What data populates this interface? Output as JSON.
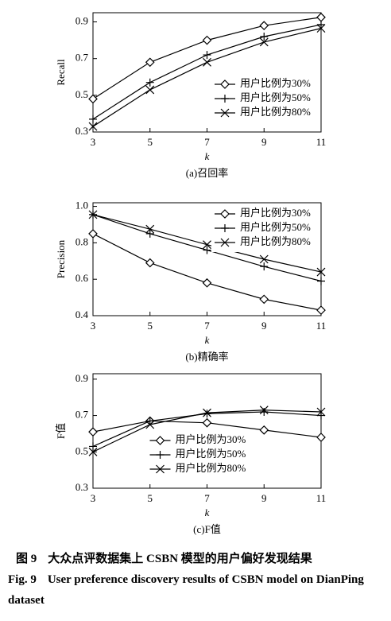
{
  "chart_data": [
    {
      "type": "line",
      "ylabel": "Recall",
      "xlabel": "k",
      "caption": "(a)召回率",
      "x": [
        3,
        5,
        7,
        9,
        11
      ],
      "xlim": [
        3,
        11
      ],
      "xticks": [
        3,
        5,
        7,
        9,
        11
      ],
      "ylim": [
        0.3,
        0.95
      ],
      "yticks": [
        0.3,
        0.5,
        0.7,
        0.9
      ],
      "legend": "lower right",
      "series": [
        {
          "name": "用户比例为30%",
          "color": "#000000",
          "marker": "diamond",
          "values": [
            0.48,
            0.68,
            0.8,
            0.88,
            0.925
          ]
        },
        {
          "name": "用户比例为50%",
          "color": "#000000",
          "marker": "plus",
          "values": [
            0.37,
            0.57,
            0.72,
            0.82,
            0.885
          ]
        },
        {
          "name": "用户比例为80%",
          "color": "#000000",
          "marker": "x",
          "values": [
            0.33,
            0.53,
            0.68,
            0.79,
            0.865
          ]
        }
      ]
    },
    {
      "type": "line",
      "ylabel": "Precision",
      "xlabel": "k",
      "caption": "(b)精确率",
      "x": [
        3,
        5,
        7,
        9,
        11
      ],
      "xlim": [
        3,
        11
      ],
      "xticks": [
        3,
        5,
        7,
        9,
        11
      ],
      "ylim": [
        0.4,
        1.02
      ],
      "yticks": [
        0.4,
        0.6,
        0.8,
        {
          "value": 1,
          "label": "1.0"
        }
      ],
      "legend": "upper right",
      "series": [
        {
          "name": "用户比例为30%",
          "color": "#000000",
          "marker": "diamond",
          "values": [
            0.85,
            0.69,
            0.58,
            0.49,
            0.43
          ]
        },
        {
          "name": "用户比例为50%",
          "color": "#000000",
          "marker": "plus",
          "values": [
            0.955,
            0.85,
            0.76,
            0.67,
            0.59
          ]
        },
        {
          "name": "用户比例为80%",
          "color": "#000000",
          "marker": "x",
          "values": [
            0.955,
            0.875,
            0.79,
            0.71,
            0.64
          ]
        }
      ]
    },
    {
      "type": "line",
      "ylabel": "F值",
      "xlabel": "k",
      "caption": "(c)F值",
      "x": [
        3,
        5,
        7,
        9,
        11
      ],
      "xlim": [
        3,
        11
      ],
      "xticks": [
        3,
        5,
        7,
        9,
        11
      ],
      "ylim": [
        0.3,
        0.93
      ],
      "yticks": [
        0.3,
        0.5,
        0.7,
        0.9
      ],
      "legend": "lower center",
      "series": [
        {
          "name": "用户比例为30%",
          "color": "#000000",
          "marker": "diamond",
          "values": [
            0.61,
            0.67,
            0.66,
            0.62,
            0.58
          ]
        },
        {
          "name": "用户比例为50%",
          "color": "#000000",
          "marker": "plus",
          "values": [
            0.53,
            0.67,
            0.71,
            0.72,
            0.7
          ]
        },
        {
          "name": "用户比例为80%",
          "color": "#000000",
          "marker": "x",
          "values": [
            0.5,
            0.65,
            0.715,
            0.73,
            0.72
          ]
        }
      ]
    }
  ],
  "figure": {
    "label_cn": "图 9",
    "title_cn": "大众点评数据集上 CSBN 模型的用户偏好发现结果",
    "label_en": "Fig. 9",
    "title_en": "User preference discovery results of CSBN model on DianPing dataset"
  }
}
